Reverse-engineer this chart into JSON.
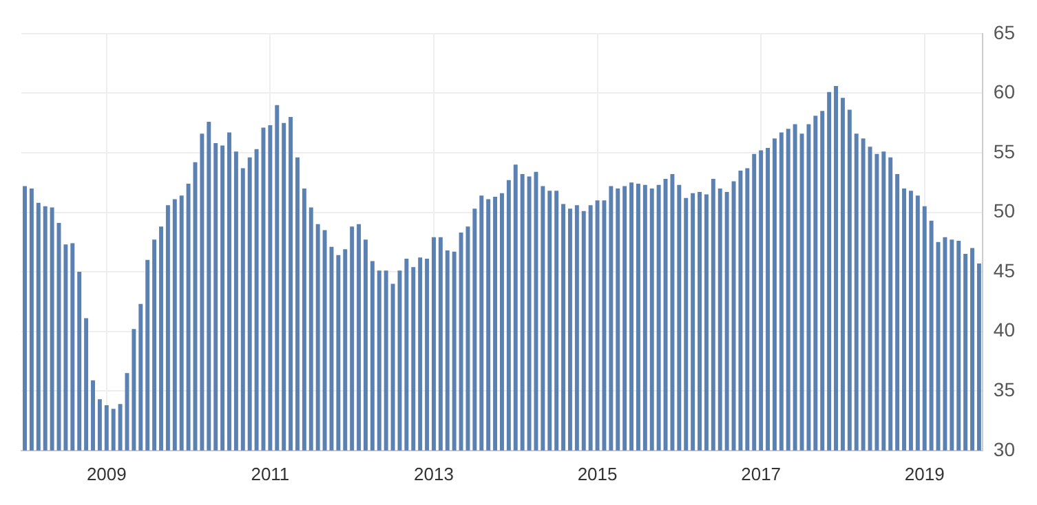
{
  "chart_data": {
    "type": "bar",
    "categories": [
      null,
      null,
      null,
      null,
      null,
      null,
      null,
      null,
      null,
      null,
      null,
      null,
      "2009",
      null,
      null,
      null,
      null,
      null,
      null,
      null,
      null,
      null,
      null,
      null,
      null,
      null,
      null,
      null,
      null,
      null,
      null,
      null,
      null,
      null,
      null,
      null,
      "2011",
      null,
      null,
      null,
      null,
      null,
      null,
      null,
      null,
      null,
      null,
      null,
      null,
      null,
      null,
      null,
      null,
      null,
      null,
      null,
      null,
      null,
      null,
      null,
      "2013",
      null,
      null,
      null,
      null,
      null,
      null,
      null,
      null,
      null,
      null,
      null,
      null,
      null,
      null,
      null,
      null,
      null,
      null,
      null,
      null,
      null,
      null,
      null,
      "2015",
      null,
      null,
      null,
      null,
      null,
      null,
      null,
      null,
      null,
      null,
      null,
      null,
      null,
      null,
      null,
      null,
      null,
      null,
      null,
      null,
      null,
      null,
      null,
      "2017",
      null,
      null,
      null,
      null,
      null,
      null,
      null,
      null,
      null,
      null,
      null,
      null,
      null,
      null,
      null,
      null,
      null,
      null,
      null,
      null,
      null,
      null,
      null,
      "2019",
      null,
      null,
      null,
      null,
      null,
      null,
      null,
      null
    ],
    "values": [
      52.2,
      52.0,
      50.8,
      50.5,
      50.4,
      49.1,
      47.3,
      47.4,
      45.0,
      41.1,
      35.9,
      34.3,
      33.8,
      33.5,
      33.9,
      36.5,
      40.2,
      42.3,
      46.0,
      47.7,
      48.8,
      50.6,
      51.1,
      51.4,
      52.4,
      54.2,
      56.6,
      57.6,
      55.8,
      55.6,
      56.7,
      55.1,
      53.7,
      54.6,
      55.3,
      57.1,
      57.3,
      59.0,
      57.5,
      58.0,
      54.6,
      52.0,
      50.4,
      49.0,
      48.5,
      47.1,
      46.4,
      46.9,
      48.8,
      49.0,
      47.7,
      45.9,
      45.1,
      45.1,
      44.0,
      45.1,
      46.1,
      45.4,
      46.2,
      46.1,
      47.9,
      47.9,
      46.8,
      46.7,
      48.3,
      48.8,
      50.3,
      51.4,
      51.1,
      51.3,
      51.6,
      52.7,
      54.0,
      53.2,
      53.0,
      53.4,
      52.2,
      51.8,
      51.8,
      50.7,
      50.3,
      50.6,
      50.1,
      50.6,
      51.0,
      51.0,
      52.2,
      52.0,
      52.2,
      52.5,
      52.4,
      52.3,
      52.0,
      52.3,
      52.8,
      53.2,
      52.3,
      51.2,
      51.6,
      51.7,
      51.5,
      52.8,
      52.0,
      51.7,
      52.6,
      53.5,
      53.7,
      54.9,
      55.2,
      55.4,
      56.2,
      56.7,
      57.0,
      57.4,
      56.6,
      57.4,
      58.1,
      58.5,
      60.1,
      60.6,
      59.6,
      58.6,
      56.6,
      56.2,
      55.5,
      54.9,
      55.1,
      54.6,
      53.2,
      52.0,
      51.8,
      51.4,
      50.5,
      49.3,
      47.5,
      47.9,
      47.7,
      47.6,
      46.5,
      47.0,
      45.7
    ],
    "color": "#5b80b2",
    "ylim": [
      30,
      65
    ],
    "yticks": [
      30,
      35,
      40,
      45,
      50,
      55,
      60,
      65
    ],
    "grid": true
  }
}
